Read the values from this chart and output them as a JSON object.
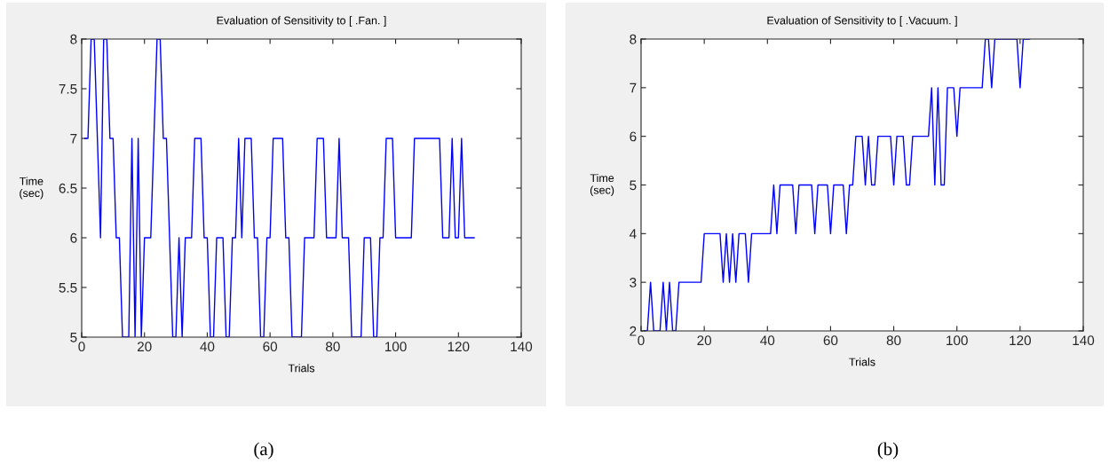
{
  "chart_data": [
    {
      "type": "line",
      "title": "Evaluation of Sensitivity to [ .Fan. ]",
      "xlabel": "Trials",
      "ylabel": "Time\n(sec)",
      "annotations": [
        "(a)"
      ],
      "xlim": [
        0,
        140
      ],
      "xticks": [
        0,
        20,
        40,
        60,
        80,
        100,
        120,
        140
      ],
      "ylim": [
        5,
        8
      ],
      "yticks": [
        5,
        5.5,
        6,
        6.5,
        7,
        7.5,
        8
      ],
      "grid": false,
      "legend": false,
      "series": [
        {
          "color": "#0000ff",
          "x": [
            1,
            2,
            3,
            4,
            5,
            6,
            7,
            8,
            9,
            10,
            11,
            12,
            13,
            15,
            16,
            17,
            18,
            19,
            20,
            22,
            24,
            25,
            26,
            27,
            29,
            30,
            31,
            32,
            33,
            35,
            36,
            38,
            39,
            40,
            41,
            42,
            43,
            45,
            46,
            47,
            48,
            49,
            50,
            51,
            52,
            54,
            55,
            56,
            57,
            58,
            59,
            60,
            61,
            64,
            65,
            66,
            67,
            70,
            71,
            74,
            75,
            77,
            78,
            81,
            82,
            83,
            85,
            86,
            89,
            90,
            92,
            93,
            94,
            95,
            96,
            97,
            99,
            100,
            105,
            106,
            114,
            115,
            117,
            118,
            119,
            120,
            121,
            122,
            125
          ],
          "values": [
            7,
            7,
            8,
            8,
            7,
            6,
            8,
            8,
            7,
            7,
            6,
            6,
            5,
            5,
            7,
            5,
            7,
            5,
            6,
            6,
            8,
            8,
            7,
            7,
            5,
            5,
            6,
            5,
            6,
            6,
            7,
            7,
            6,
            6,
            5,
            5,
            6,
            6,
            5,
            5,
            6,
            6,
            7,
            6,
            7,
            7,
            6,
            6,
            5,
            5,
            6,
            6,
            7,
            7,
            6,
            6,
            5,
            5,
            6,
            6,
            7,
            7,
            6,
            6,
            7,
            6,
            6,
            5,
            5,
            6,
            6,
            5,
            5,
            6,
            6,
            7,
            7,
            6,
            6,
            7,
            7,
            6,
            6,
            7,
            6,
            6,
            7,
            6,
            6
          ]
        }
      ]
    },
    {
      "type": "line",
      "title": "Evaluation of Sensitivity to [ .Vacuum. ]",
      "xlabel": "Trials",
      "ylabel": "Time\n(sec)",
      "annotations": [
        "(b)"
      ],
      "xlim": [
        0,
        140
      ],
      "xticks": [
        0,
        20,
        40,
        60,
        80,
        100,
        120,
        140
      ],
      "ylim": [
        2,
        8
      ],
      "yticks": [
        2,
        3,
        4,
        5,
        6,
        7,
        8
      ],
      "grid": false,
      "legend": false,
      "series": [
        {
          "color": "#0000ff",
          "x": [
            1,
            2,
            3,
            4,
            6,
            7,
            8,
            9,
            10,
            11,
            12,
            19,
            20,
            25,
            26,
            27,
            28,
            29,
            30,
            31,
            33,
            34,
            35,
            41,
            42,
            43,
            44,
            48,
            49,
            50,
            54,
            55,
            56,
            59,
            60,
            61,
            64,
            65,
            66,
            67,
            68,
            70,
            71,
            72,
            73,
            74,
            75,
            79,
            80,
            81,
            83,
            84,
            85,
            86,
            91,
            92,
            93,
            94,
            95,
            96,
            97,
            99,
            100,
            101,
            108,
            109,
            110,
            111,
            112,
            119,
            120,
            121,
            123
          ],
          "values": [
            2,
            2,
            3,
            2,
            2,
            3,
            2,
            3,
            2,
            2,
            3,
            3,
            4,
            4,
            3,
            4,
            3,
            4,
            3,
            4,
            4,
            3,
            4,
            4,
            5,
            4,
            5,
            5,
            4,
            5,
            5,
            4,
            5,
            5,
            4,
            5,
            5,
            4,
            5,
            5,
            6,
            6,
            5,
            6,
            5,
            5,
            6,
            6,
            5,
            6,
            6,
            5,
            5,
            6,
            6,
            7,
            5,
            7,
            5,
            5,
            7,
            7,
            6,
            7,
            7,
            8,
            8,
            7,
            8,
            8,
            7,
            8,
            8
          ]
        }
      ]
    }
  ]
}
